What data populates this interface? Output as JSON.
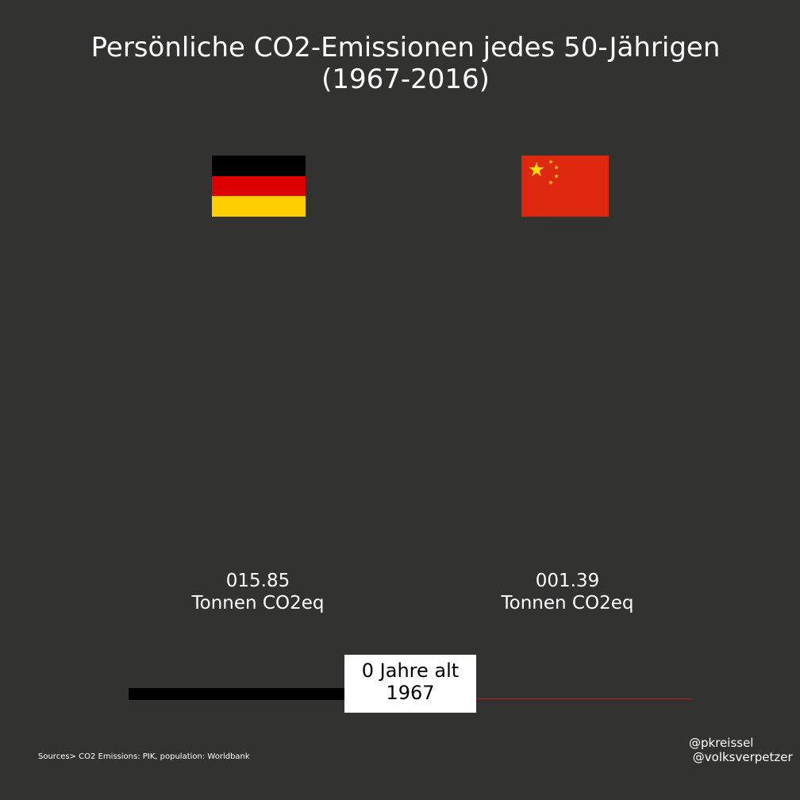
{
  "title": "Persönliche CO2-Emissionen jedes 50-Jährigen\n(1967-2016)",
  "chart_data": {
    "type": "bar",
    "title": "Persönliche CO2-Emissionen jedes 50-Jährigen (1967-2016)",
    "categories": [
      "Deutschland",
      "China"
    ],
    "values": [
      15.85,
      1.39
    ],
    "value_labels": [
      "015.85",
      "001.39"
    ],
    "unit": "Tonnen CO2eq",
    "xlabel": "",
    "ylabel": "",
    "grid": false
  },
  "countries": [
    {
      "flag_icon": "germany-flag-icon",
      "value_text": "015.85",
      "unit_text": "Tonnen CO2eq",
      "flag_colors": [
        "#000000",
        "#dd0000",
        "#ffce00"
      ]
    },
    {
      "flag_icon": "china-flag-icon",
      "value_text": "001.39",
      "unit_text": "Tonnen CO2eq",
      "flag_colors": [
        "#de2910",
        "#ffde00"
      ]
    }
  ],
  "timeline": {
    "age_text": "0 Jahre alt",
    "year_text": "1967",
    "progress_fraction": 0.385,
    "fill_color": "#000000",
    "track_color": "#c41e1e"
  },
  "sources": "Sources> CO2 Emissions: PIK, population: Worldbank",
  "credits": [
    "@pkreissel",
    " @volksverpetzer"
  ],
  "colors": {
    "background": "#323230",
    "text": "#ffffff"
  }
}
